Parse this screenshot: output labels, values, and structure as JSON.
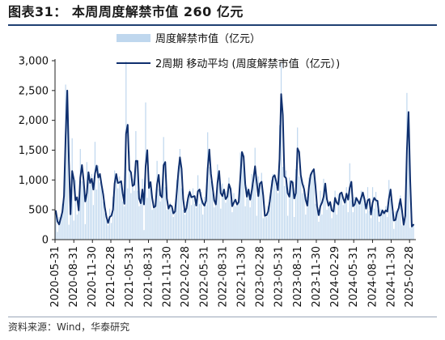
{
  "figure": {
    "title": "图表31： 本周周度解禁市值 260 亿元",
    "source": "资料来源：Wind，华泰研究"
  },
  "chart_data": {
    "type": "bar",
    "title": "",
    "xlabel": "",
    "ylabel": "",
    "ylim": [
      0,
      3000
    ],
    "yticks": [
      0,
      500,
      1000,
      1500,
      2000,
      2500,
      3000
    ],
    "ytick_labels": [
      "0",
      "500",
      "1,000",
      "1,500",
      "2,000",
      "2,500",
      "3,000"
    ],
    "x_range": [
      "2020-05-31",
      "2025-03-23"
    ],
    "xtick_labels": [
      "2020-05-31",
      "2020-08-31",
      "2020-11-30",
      "2021-02-28",
      "2021-05-31",
      "2021-08-31",
      "2021-11-30",
      "2022-02-28",
      "2022-05-31",
      "2022-08-31",
      "2022-11-30",
      "2023-02-28",
      "2023-05-31",
      "2023-08-31",
      "2023-11-30",
      "2024-02-29",
      "2024-05-31",
      "2024-08-31",
      "2024-11-30",
      "2025-02-28"
    ],
    "grid": false,
    "legend_position": "top-left",
    "colors": {
      "bar": "#bfd7ee",
      "line": "#0f2f6e"
    },
    "series": [
      {
        "name": "周度解禁市值（亿元）",
        "type": "bar",
        "values": [
          480,
          130,
          380,
          330,
          600,
          860,
          2600,
          2400,
          250,
          600,
          1700,
          320,
          1000,
          420,
          560,
          1520,
          980,
          1020,
          260,
          1300,
          960,
          940,
          1100,
          580,
          1640,
          840,
          1240,
          960,
          880,
          640,
          440,
          320,
          240,
          520,
          280,
          720,
          1160,
          1040,
          860,
          1060,
          900,
          640,
          560,
          2990,
          860,
          1480,
          780,
          1020,
          820,
          1820,
          820,
          560,
          660,
          1020,
          160,
          2300,
          700,
          1030,
          900,
          500,
          580,
          540,
          1320,
          850,
          640,
          780,
          1720,
          880,
          500,
          540,
          620,
          500,
          380,
          560,
          1000,
          1240,
          1520,
          860,
          500,
          420,
          640,
          760,
          840,
          580,
          860,
          600,
          540,
          1080,
          600,
          800,
          420,
          720,
          580,
          1800,
          1220,
          980,
          780,
          540,
          640,
          1260,
          1040,
          520,
          940,
          740,
          620,
          820,
          1040,
          660,
          460,
          780,
          560,
          620,
          640,
          1460,
          1480,
          1300,
          560,
          880,
          800,
          540,
          1100,
          920,
          1540,
          400,
          1060,
          820,
          1120,
          360,
          440,
          380,
          560,
          720,
          1000,
          1100,
          1060,
          880,
          780,
          1920,
          2960,
          1220,
          900,
          1160,
          400,
          1040,
          920,
          1000,
          380,
          1180,
          1880,
          1060,
          1100,
          780,
          920,
          420,
          720,
          1040,
          1120,
          1160,
          1200,
          600,
          520,
          300,
          820,
          420,
          1020,
          860,
          500,
          640,
          620,
          360,
          580,
          820,
          420,
          760,
          780,
          800,
          580,
          660,
          880,
          460,
          1280,
          660,
          460,
          720,
          680,
          620,
          580,
          820,
          760,
          600,
          440,
          880,
          480,
          360,
          880,
          520,
          800,
          500,
          300,
          520,
          460,
          420,
          560,
          380,
          1000,
          680,
          460,
          180,
          480,
          440,
          620,
          740,
          240,
          260,
          540,
          2460,
          1820,
          200,
          240,
          260
        ],
        "show_in_legend": true
      },
      {
        "name": "2周期 移动平均 (周度解禁市值（亿元）)",
        "type": "line",
        "values": [
          480,
          305,
          255,
          355,
          465,
          730,
          1730,
          2500,
          1325,
          425,
          1150,
          1010,
          660,
          710,
          490,
          1040,
          1250,
          1000,
          640,
          780,
          1130,
          950,
          1020,
          840,
          1110,
          1240,
          1040,
          1100,
          920,
          760,
          540,
          380,
          280,
          380,
          400,
          500,
          940,
          1100,
          950,
          960,
          980,
          770,
          600,
          1775,
          1925,
          1170,
          1130,
          900,
          920,
          1320,
          1320,
          690,
          610,
          840,
          590,
          1230,
          1500,
          865,
          965,
          700,
          540,
          560,
          930,
          1085,
          745,
          710,
          1250,
          1300,
          690,
          520,
          580,
          560,
          440,
          470,
          780,
          1120,
          1380,
          1190,
          680,
          460,
          530,
          700,
          800,
          710,
          720,
          730,
          570,
          810,
          840,
          700,
          610,
          570,
          650,
          1190,
          1510,
          1100,
          880,
          660,
          590,
          950,
          1150,
          780,
          730,
          840,
          680,
          720,
          930,
          850,
          560,
          620,
          670,
          590,
          630,
          1050,
          1470,
          1390,
          930,
          720,
          840,
          670,
          820,
          1010,
          1230,
          970,
          730,
          940,
          970,
          740,
          400,
          410,
          470,
          640,
          860,
          1050,
          1080,
          970,
          830,
          1350,
          2440,
          2090,
          1060,
          1030,
          780,
          720,
          980,
          960,
          690,
          780,
          1530,
          1470,
          1080,
          940,
          850,
          670,
          570,
          880,
          1080,
          1140,
          1180,
          900,
          560,
          410,
          560,
          620,
          720,
          940,
          680,
          570,
          630,
          490,
          470,
          700,
          620,
          590,
          770,
          790,
          690,
          620,
          770,
          670,
          870,
          970,
          560,
          590,
          700,
          650,
          600,
          700,
          790,
          680,
          520,
          660,
          680,
          420,
          620,
          700,
          660,
          650,
          400,
          410,
          490,
          440,
          490,
          470,
          690,
          840,
          570,
          320,
          330,
          460,
          530,
          680,
          490,
          250,
          400,
          1500,
          2140,
          1010,
          220,
          250
        ]
      }
    ]
  }
}
